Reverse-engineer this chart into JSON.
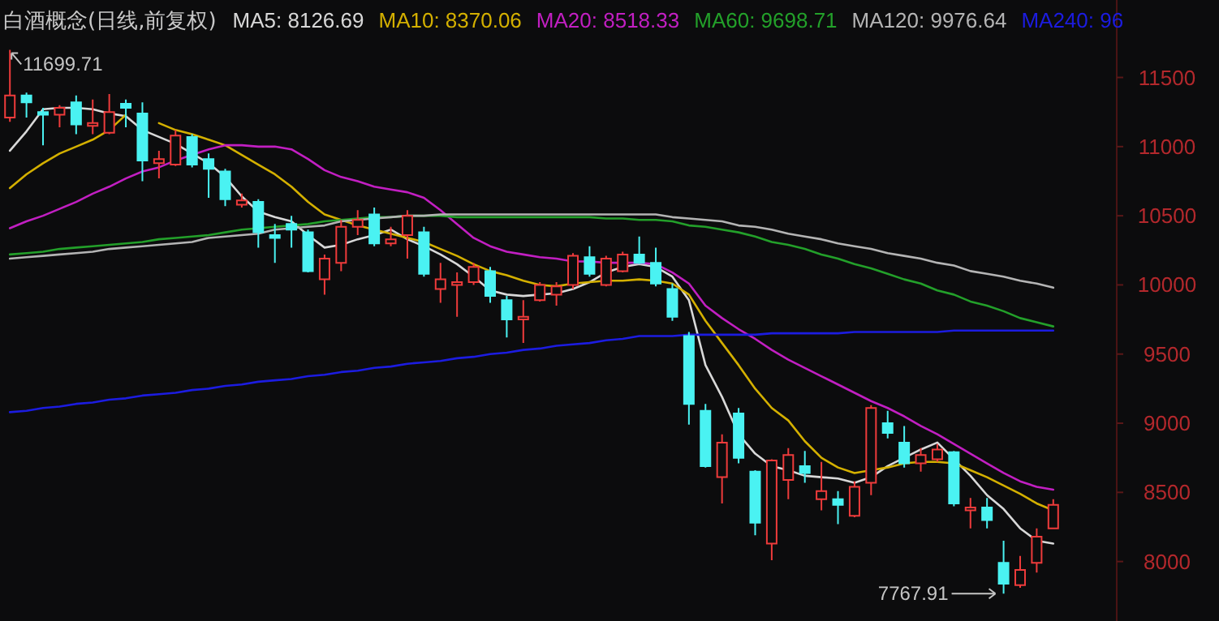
{
  "chart_data": {
    "type": "candlestick",
    "title": "白酒概念(日线,前复权)",
    "legend": "top",
    "categories": [
      null,
      null,
      null,
      null,
      null,
      null,
      null,
      null,
      null,
      null,
      null,
      null,
      null,
      null,
      null,
      null,
      null,
      null,
      null,
      null,
      null,
      null,
      null,
      null,
      null,
      null,
      null,
      null,
      null,
      null,
      null,
      null,
      null,
      null,
      null,
      null,
      null,
      null,
      null,
      null,
      null,
      null,
      null,
      null,
      null,
      null,
      null,
      null,
      null,
      null,
      null,
      null,
      null,
      null,
      null,
      null,
      null,
      null,
      null,
      null,
      null,
      null,
      null,
      null
    ],
    "ylim": [
      7570,
      12060
    ],
    "yticks": [
      8000,
      8500,
      9000,
      9500,
      10000,
      10500,
      11000,
      11500
    ],
    "ohlc": [
      [
        11210,
        11699.71,
        11180,
        11370
      ],
      [
        11370,
        11390,
        11210,
        11320
      ],
      [
        11250,
        11280,
        11010,
        11230
      ],
      [
        11230,
        11300,
        11140,
        11280
      ],
      [
        11320,
        11370,
        11090,
        11160
      ],
      [
        11150,
        11340,
        11090,
        11170
      ],
      [
        11100,
        11380,
        11090,
        11250
      ],
      [
        11310,
        11340,
        11140,
        11280
      ],
      [
        11240,
        11320,
        10750,
        10900
      ],
      [
        10880,
        10970,
        10770,
        10910
      ],
      [
        10870,
        11120,
        10860,
        11080
      ],
      [
        11070,
        11090,
        10850,
        10870
      ],
      [
        10910,
        10950,
        10630,
        10840
      ],
      [
        10820,
        10840,
        10570,
        10620
      ],
      [
        10580,
        10660,
        10560,
        10610
      ],
      [
        10600,
        10620,
        10270,
        10380
      ],
      [
        10360,
        10440,
        10160,
        10340
      ],
      [
        10440,
        10500,
        10270,
        10400
      ],
      [
        10380,
        10400,
        10090,
        10100
      ],
      [
        10040,
        10220,
        9930,
        10190
      ],
      [
        10160,
        10470,
        10100,
        10420
      ],
      [
        10420,
        10540,
        10360,
        10470
      ],
      [
        10510,
        10560,
        10280,
        10300
      ],
      [
        10300,
        10420,
        10280,
        10330
      ],
      [
        10360,
        10540,
        10190,
        10500
      ],
      [
        10380,
        10420,
        10060,
        10080
      ],
      [
        9970,
        10160,
        9870,
        10040
      ],
      [
        10000,
        10090,
        9770,
        10020
      ],
      [
        10020,
        10160,
        10000,
        10130
      ],
      [
        10100,
        10130,
        9870,
        9920
      ],
      [
        9890,
        9920,
        9620,
        9750
      ],
      [
        9750,
        9890,
        9580,
        9770
      ],
      [
        9890,
        10020,
        9880,
        10000
      ],
      [
        9930,
        10020,
        9850,
        9990
      ],
      [
        10000,
        10230,
        9970,
        10210
      ],
      [
        10200,
        10280,
        10060,
        10080
      ],
      [
        10000,
        10210,
        9990,
        10190
      ],
      [
        10100,
        10240,
        10090,
        10220
      ],
      [
        10220,
        10350,
        10150,
        10160
      ],
      [
        10160,
        10270,
        9990,
        10010
      ],
      [
        9970,
        10010,
        9740,
        9770
      ],
      [
        9630,
        9660,
        8990,
        9140
      ],
      [
        9090,
        9140,
        8680,
        8690
      ],
      [
        8610,
        8920,
        8420,
        8860
      ],
      [
        9070,
        9110,
        8710,
        8750
      ],
      [
        8650,
        8660,
        8190,
        8280
      ],
      [
        8130,
        8740,
        8010,
        8730
      ],
      [
        8590,
        8820,
        8450,
        8770
      ],
      [
        8690,
        8800,
        8570,
        8640
      ],
      [
        8450,
        8720,
        8370,
        8510
      ],
      [
        8450,
        8510,
        8270,
        8410
      ],
      [
        8330,
        8580,
        8320,
        8540
      ],
      [
        8570,
        9130,
        8480,
        9110
      ],
      [
        9000,
        9090,
        8890,
        8930
      ],
      [
        8860,
        8980,
        8680,
        8710
      ],
      [
        8710,
        8820,
        8650,
        8770
      ],
      [
        8740,
        8850,
        8720,
        8810
      ],
      [
        8790,
        8800,
        8400,
        8420
      ],
      [
        8370,
        8460,
        8240,
        8390
      ],
      [
        8390,
        8460,
        8240,
        8300
      ],
      [
        7990,
        8150,
        7767.91,
        7840
      ],
      [
        7830,
        8040,
        7810,
        7940
      ],
      [
        7990,
        8240,
        7920,
        8180
      ],
      [
        8240,
        8450,
        8240,
        8410
      ]
    ],
    "colors": [
      "#ee3b3b",
      "#4af2f2",
      "#4af2f2",
      "#ee3b3b",
      "#4af2f2",
      "#ee3b3b",
      "#ee3b3b",
      "#4af2f2",
      "#4af2f2",
      "#ee3b3b",
      "#ee3b3b",
      "#4af2f2",
      "#4af2f2",
      "#4af2f2",
      "#ee3b3b",
      "#4af2f2",
      "#4af2f2",
      "#4af2f2",
      "#4af2f2",
      "#ee3b3b",
      "#ee3b3b",
      "#ee3b3b",
      "#4af2f2",
      "#ee3b3b",
      "#ee3b3b",
      "#4af2f2",
      "#ee3b3b",
      "#ee3b3b",
      "#ee3b3b",
      "#4af2f2",
      "#4af2f2",
      "#ee3b3b",
      "#ee3b3b",
      "#ee3b3b",
      "#ee3b3b",
      "#4af2f2",
      "#ee3b3b",
      "#ee3b3b",
      "#4af2f2",
      "#4af2f2",
      "#4af2f2",
      "#4af2f2",
      "#4af2f2",
      "#ee3b3b",
      "#4af2f2",
      "#4af2f2",
      "#ee3b3b",
      "#ee3b3b",
      "#4af2f2",
      "#ee3b3b",
      "#4af2f2",
      "#ee3b3b",
      "#ee3b3b",
      "#4af2f2",
      "#4af2f2",
      "#ee3b3b",
      "#ee3b3b",
      "#4af2f2",
      "#ee3b3b",
      "#4af2f2",
      "#4af2f2",
      "#ee3b3b",
      "#ee3b3b",
      "#ee3b3b"
    ],
    "series": [
      {
        "name": "MA5: 8126.69",
        "type": "line",
        "color": "#d8d8d8",
        "values": [
          10970,
          11110,
          11270,
          11280,
          11280,
          11270,
          11240,
          11220,
          11120,
          11070,
          11020,
          10950,
          10880,
          10780,
          10640,
          10530,
          10490,
          10460,
          10360,
          10270,
          10290,
          10330,
          10360,
          10400,
          10330,
          10280,
          10220,
          10150,
          10060,
          9960,
          9930,
          9920,
          9930,
          9940,
          9970,
          10020,
          10090,
          10130,
          10150,
          10130,
          10060,
          9890,
          9420,
          9190,
          8920,
          8780,
          8690,
          8660,
          8620,
          8610,
          8600,
          8570,
          8610,
          8690,
          8750,
          8810,
          8860,
          8740,
          8620,
          8480,
          8380,
          8240,
          8150,
          8130
        ]
      },
      {
        "name": "MA10: 8370.06",
        "type": "line",
        "color": "#d4b000",
        "values": [
          10700,
          10800,
          10880,
          10950,
          11000,
          11050,
          11120,
          11230,
          null,
          11170,
          11120,
          11090,
          11050,
          11010,
          10940,
          10870,
          10800,
          10710,
          10600,
          10510,
          10470,
          10430,
          10400,
          10370,
          10340,
          10310,
          10260,
          10210,
          10150,
          10100,
          10070,
          10030,
          10000,
          9990,
          10010,
          10020,
          10030,
          10030,
          10040,
          10030,
          10010,
          9930,
          9740,
          9580,
          9420,
          9250,
          9110,
          9020,
          8870,
          8750,
          8680,
          8640,
          8660,
          8680,
          8710,
          8720,
          8720,
          8710,
          8660,
          8610,
          8550,
          8490,
          8420,
          8370
        ]
      },
      {
        "name": "MA20: 8518.33",
        "type": "line",
        "color": "#c21fc2",
        "values": [
          10410,
          10460,
          10500,
          10550,
          10600,
          10660,
          10710,
          10770,
          10820,
          10850,
          10900,
          10940,
          10980,
          11010,
          11010,
          11000,
          11000,
          10980,
          10910,
          10830,
          10780,
          10750,
          10710,
          10690,
          10670,
          10630,
          10540,
          10440,
          10340,
          10280,
          10240,
          10220,
          10200,
          10190,
          10170,
          10170,
          10160,
          10160,
          10160,
          10150,
          10090,
          10010,
          9850,
          9760,
          9680,
          9610,
          9530,
          9460,
          9400,
          9340,
          9280,
          9220,
          9160,
          9110,
          9050,
          8980,
          8920,
          8850,
          8780,
          8710,
          8640,
          8580,
          8540,
          8520
        ]
      },
      {
        "name": "MA60: 9698.71",
        "type": "line",
        "color": "#23a02a",
        "values": [
          10220,
          10230,
          10240,
          10260,
          10270,
          10280,
          10290,
          10300,
          10310,
          10330,
          10340,
          10350,
          10360,
          10380,
          10400,
          10410,
          10420,
          10430,
          10440,
          10460,
          10470,
          10480,
          10490,
          10490,
          10500,
          10500,
          10500,
          10490,
          10490,
          10490,
          10490,
          10490,
          10490,
          10490,
          10490,
          10490,
          10480,
          10480,
          10470,
          10470,
          10460,
          10430,
          10420,
          10400,
          10380,
          10350,
          10310,
          10290,
          10260,
          10220,
          10190,
          10150,
          10120,
          10080,
          10040,
          10010,
          9960,
          9930,
          9880,
          9850,
          9810,
          9760,
          9730,
          9700
        ]
      },
      {
        "name": "MA120: 9976.64",
        "type": "line",
        "color": "#b4b4b4",
        "values": [
          10190,
          10200,
          10210,
          10220,
          10230,
          10240,
          10260,
          10270,
          10280,
          10290,
          10300,
          10310,
          10340,
          10350,
          10360,
          10370,
          10400,
          10410,
          10420,
          10430,
          10460,
          10470,
          10480,
          10490,
          10500,
          10500,
          10510,
          10510,
          10510,
          10510,
          10510,
          10510,
          10510,
          10510,
          10510,
          10510,
          10510,
          10510,
          10510,
          10510,
          10490,
          10480,
          10470,
          10460,
          10430,
          10420,
          10400,
          10370,
          10350,
          10330,
          10300,
          10280,
          10260,
          10230,
          10210,
          10190,
          10160,
          10140,
          10100,
          10080,
          10060,
          10030,
          10010,
          9980
        ]
      },
      {
        "name": "MA240: 96",
        "type": "line",
        "color": "#1c1ce0",
        "values": [
          9080,
          9090,
          9110,
          9120,
          9140,
          9150,
          9170,
          9180,
          9200,
          9210,
          9220,
          9240,
          9250,
          9270,
          9280,
          9300,
          9310,
          9320,
          9340,
          9350,
          9370,
          9380,
          9400,
          9410,
          9430,
          9440,
          9450,
          9470,
          9480,
          9500,
          9510,
          9530,
          9540,
          9560,
          9570,
          9580,
          9600,
          9610,
          9630,
          9630,
          9630,
          9640,
          9640,
          9640,
          9640,
          9640,
          9650,
          9650,
          9650,
          9650,
          9650,
          9660,
          9660,
          9660,
          9660,
          9660,
          9660,
          9670,
          9670,
          9670,
          9670,
          9670,
          9670,
          9670
        ]
      }
    ],
    "annotations": [
      "11699.71",
      "7767.91"
    ]
  }
}
